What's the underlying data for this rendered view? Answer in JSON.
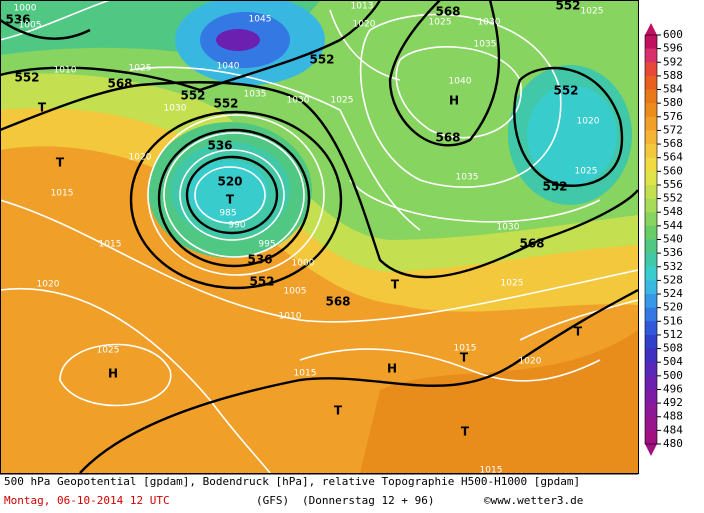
{
  "colorbar": {
    "ticks": [
      600,
      596,
      592,
      588,
      584,
      580,
      576,
      572,
      568,
      564,
      560,
      556,
      552,
      548,
      544,
      540,
      536,
      532,
      528,
      524,
      520,
      516,
      512,
      508,
      504,
      500,
      496,
      492,
      488,
      484,
      480
    ],
    "colors": [
      "#c01060",
      "#d8306a",
      "#e84838",
      "#e86020",
      "#e87818",
      "#ec8c1c",
      "#f0a028",
      "#f4b434",
      "#f4c83c",
      "#f0dc40",
      "#e0e448",
      "#c4e050",
      "#a8dc58",
      "#88d460",
      "#68cc68",
      "#50c884",
      "#40c8a8",
      "#38cccc",
      "#38b8e0",
      "#3898e8",
      "#3478e4",
      "#3058d8",
      "#3040c8",
      "#4030c0",
      "#5828b8",
      "#6c20b0",
      "#7c1ca4",
      "#8c1898",
      "#98148c",
      "#a01080"
    ]
  },
  "map": {
    "labels": [
      "536",
      "1000",
      "1005",
      "1010",
      "552",
      "568",
      "T",
      "T",
      "1025",
      "1030",
      "1045",
      "1040",
      "552",
      "552",
      "552",
      "1035",
      "1030",
      "1025",
      "1020",
      "1015",
      "536",
      "520",
      "T",
      "985",
      "990",
      "995",
      "1000",
      "536",
      "552",
      "1005",
      "568",
      "1010",
      "1015",
      "1020",
      "1025",
      "H",
      "1015",
      "1015",
      "1020",
      "H",
      "T",
      "T",
      "T",
      "T",
      "T",
      "1025",
      "568",
      "1030",
      "1035",
      "552",
      "1025",
      "552",
      "1020",
      "568",
      "H",
      "1040",
      "1035",
      "1030",
      "1025",
      "568",
      "552",
      "1025",
      "1013",
      "1020",
      "1015"
    ]
  },
  "footer": {
    "line1": "500 hPa Geopotential [gpdam], Bodendruck [hPa], relative Topographie H500-H1000 [gpdam]",
    "date": "Montag, 06-10-2014  12 UTC",
    "model": "(GFS)",
    "valid": "(Donnerstag 12 + 96)",
    "copyright": "©www.wetter3.de"
  }
}
